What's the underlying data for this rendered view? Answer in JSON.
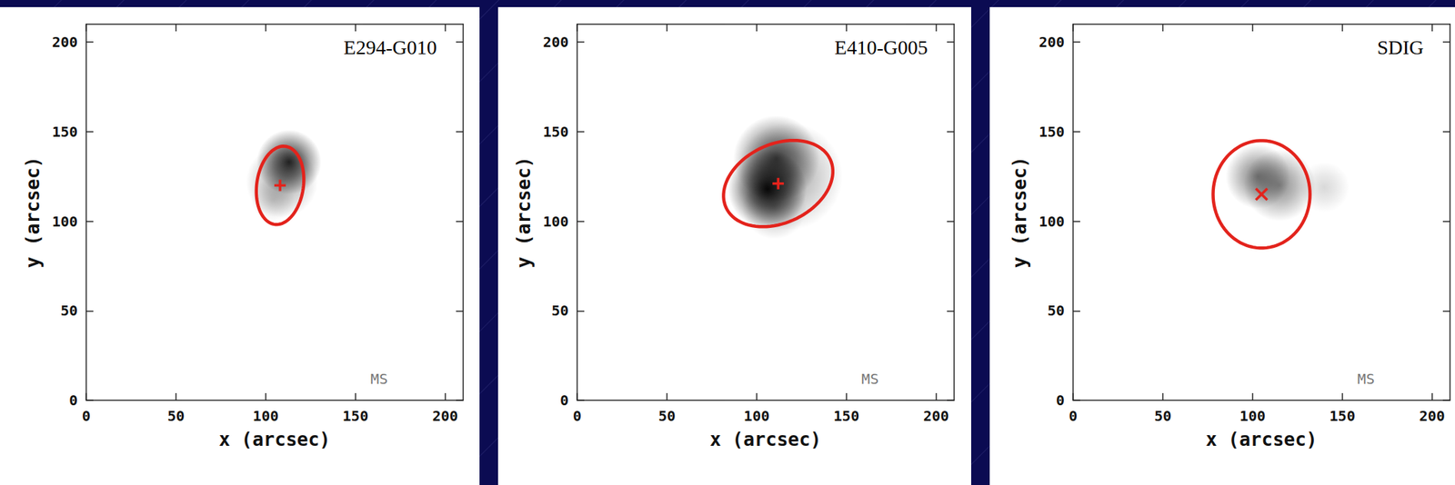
{
  "chart_data": [
    {
      "type": "image",
      "title": "E294-G010",
      "annotation": "MS",
      "x_label": "x (arcsec)",
      "y_label": "y (arcsec)",
      "xlim": [
        0,
        210
      ],
      "ylim": [
        0,
        210
      ],
      "xticks": [
        0,
        50,
        100,
        150,
        200
      ],
      "yticks": [
        0,
        50,
        100,
        150,
        200
      ],
      "blobs": [
        {
          "x": 113,
          "y": 133,
          "size": 18,
          "intensity": 0.85
        },
        {
          "x": 109,
          "y": 122,
          "size": 20,
          "intensity": 0.35
        },
        {
          "x": 104,
          "y": 112,
          "size": 12,
          "intensity": 0.15
        }
      ],
      "ellipse": {
        "center": [
          108,
          120
        ],
        "semi_axes": [
          13,
          22
        ],
        "angle": -8
      },
      "marker": "plus",
      "color": "#e3231c"
    },
    {
      "type": "image",
      "title": "E410-G005",
      "annotation": "MS",
      "x_label": "x (arcsec)",
      "y_label": "y (arcsec)",
      "xlim": [
        0,
        210
      ],
      "ylim": [
        0,
        210
      ],
      "xticks": [
        0,
        50,
        100,
        150,
        200
      ],
      "yticks": [
        0,
        50,
        100,
        150,
        200
      ],
      "blobs": [
        {
          "x": 106,
          "y": 118,
          "size": 22,
          "intensity": 0.95
        },
        {
          "x": 111,
          "y": 135,
          "size": 24,
          "intensity": 0.7
        },
        {
          "x": 118,
          "y": 125,
          "size": 30,
          "intensity": 0.35
        },
        {
          "x": 110,
          "y": 108,
          "size": 18,
          "intensity": 0.3
        }
      ],
      "ellipse": {
        "center": [
          112,
          121
        ],
        "semi_axes": [
          32,
          22
        ],
        "angle": 25
      },
      "marker": "plus",
      "color": "#e3231c"
    },
    {
      "type": "image",
      "title": "SDIG",
      "annotation": "MS",
      "x_label": "x (arcsec)",
      "y_label": "y (arcsec)",
      "xlim": [
        0,
        210
      ],
      "ylim": [
        0,
        210
      ],
      "xticks": [
        0,
        50,
        100,
        150,
        200
      ],
      "yticks": [
        0,
        50,
        100,
        150,
        200
      ],
      "blobs": [
        {
          "x": 103,
          "y": 125,
          "size": 18,
          "intensity": 0.5
        },
        {
          "x": 115,
          "y": 120,
          "size": 20,
          "intensity": 0.45
        },
        {
          "x": 140,
          "y": 119,
          "size": 14,
          "intensity": 0.15
        }
      ],
      "ellipse": {
        "center": [
          105,
          115
        ],
        "semi_axes": [
          27,
          30
        ],
        "angle": 0
      },
      "marker": "cross",
      "color": "#e3231c"
    }
  ]
}
